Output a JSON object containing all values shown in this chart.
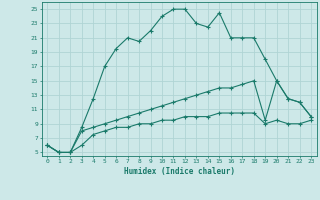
{
  "xlabel": "Humidex (Indice chaleur)",
  "bg_color": "#cde8e8",
  "grid_color": "#b0d4d4",
  "line_color": "#1a7a6a",
  "xlim": [
    -0.5,
    23.5
  ],
  "ylim": [
    4.5,
    26
  ],
  "yticks": [
    5,
    7,
    9,
    11,
    13,
    15,
    17,
    19,
    21,
    23,
    25
  ],
  "xticks": [
    0,
    1,
    2,
    3,
    4,
    5,
    6,
    7,
    8,
    9,
    10,
    11,
    12,
    13,
    14,
    15,
    16,
    17,
    18,
    19,
    20,
    21,
    22,
    23
  ],
  "line1_x": [
    0,
    1,
    2,
    3,
    4,
    5,
    6,
    7,
    8,
    9,
    10,
    11,
    12,
    13,
    14,
    15,
    16,
    17,
    18,
    19,
    20,
    21,
    22,
    23
  ],
  "line1_y": [
    6,
    5,
    5,
    8.5,
    12.5,
    17,
    19.5,
    21,
    20.5,
    22,
    24,
    25,
    25,
    23,
    22.5,
    24.5,
    21,
    21,
    21,
    18,
    15,
    12.5,
    12,
    10
  ],
  "line2_x": [
    0,
    1,
    2,
    3,
    4,
    5,
    6,
    7,
    8,
    9,
    10,
    11,
    12,
    13,
    14,
    15,
    16,
    17,
    18,
    19,
    20,
    21,
    22,
    23
  ],
  "line2_y": [
    6,
    5,
    5,
    8,
    8.5,
    9,
    9.5,
    10,
    10.5,
    11,
    11.5,
    12,
    12.5,
    13,
    13.5,
    14,
    14,
    14.5,
    15,
    9.5,
    15,
    12.5,
    12,
    10
  ],
  "line3_x": [
    0,
    1,
    2,
    3,
    4,
    5,
    6,
    7,
    8,
    9,
    10,
    11,
    12,
    13,
    14,
    15,
    16,
    17,
    18,
    19,
    20,
    21,
    22,
    23
  ],
  "line3_y": [
    6,
    5,
    5,
    6,
    7.5,
    8,
    8.5,
    8.5,
    9,
    9,
    9.5,
    9.5,
    10,
    10,
    10,
    10.5,
    10.5,
    10.5,
    10.5,
    9,
    9.5,
    9,
    9,
    9.5
  ]
}
